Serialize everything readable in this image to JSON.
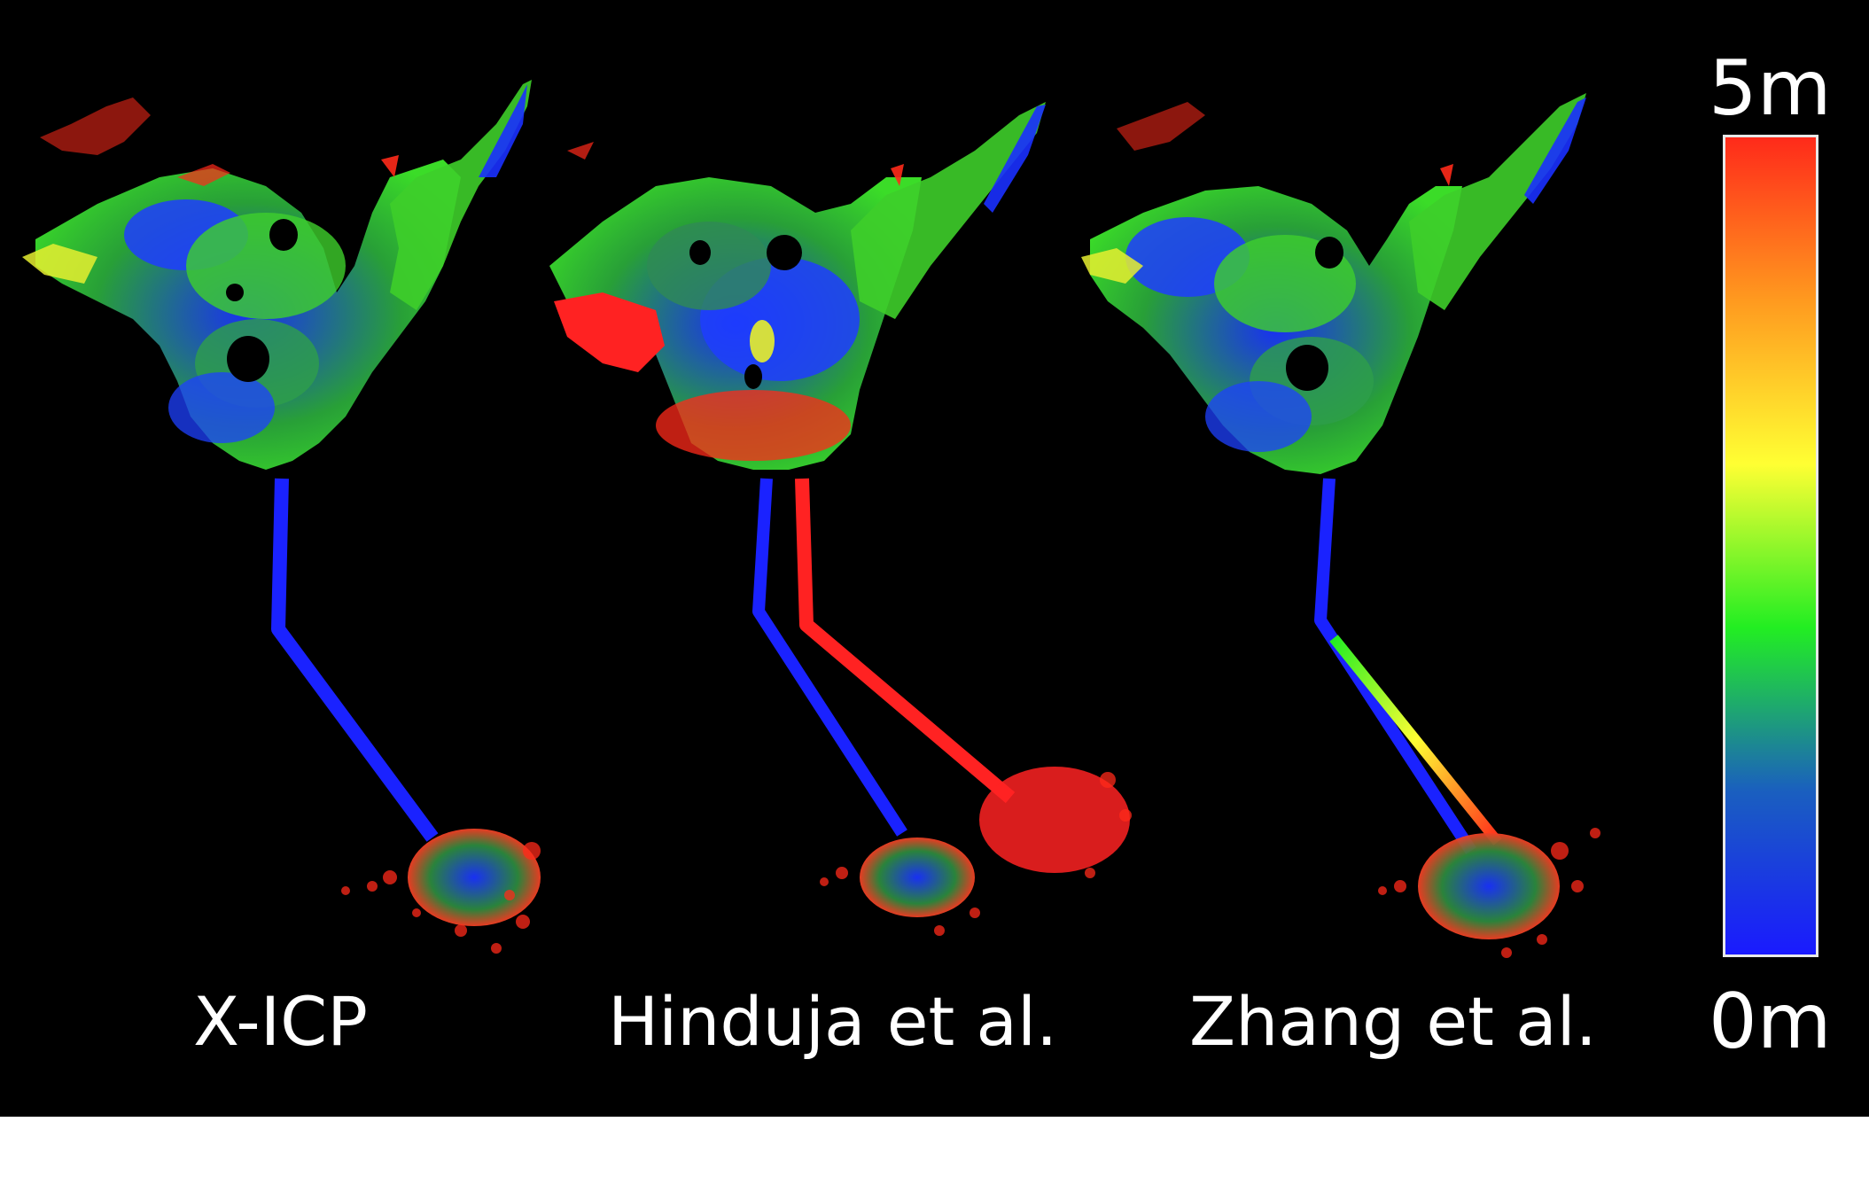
{
  "panels": [
    {
      "label": "X-ICP"
    },
    {
      "label": "Hinduja et al."
    },
    {
      "label": "Zhang et al."
    }
  ],
  "colorbar": {
    "max_label": "5m",
    "min_label": "0m",
    "colors": [
      "#ff2a1a",
      "#ff9a1f",
      "#ffff33",
      "#22ee22",
      "#1a5fbf",
      "#1a1aff"
    ]
  },
  "colors": {
    "background": "#000000",
    "blue": "#1a2cff",
    "green": "#3ecf2a",
    "yellow": "#e8ef2a",
    "red": "#ff2222"
  }
}
